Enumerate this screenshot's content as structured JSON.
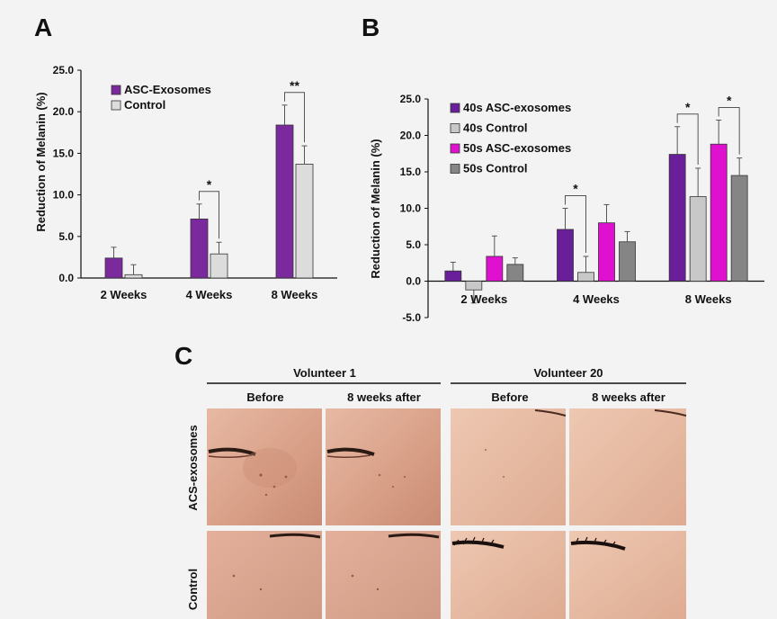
{
  "panels": {
    "a": "A",
    "b": "B",
    "c": "C"
  },
  "chart_data": [
    {
      "type": "bar",
      "panel": "A",
      "ylabel": "Reduction of Melanin (%)",
      "ylim": [
        0,
        25
      ],
      "yticks": [
        "0.0",
        "5.0",
        "10.0",
        "15.0",
        "20.0",
        "25.0"
      ],
      "categories": [
        "2 Weeks",
        "4 Weeks",
        "8 Weeks"
      ],
      "series": [
        {
          "name": "ASC-Exosomes",
          "color": "#7b2a9e",
          "values": [
            2.4,
            7.1,
            18.4
          ],
          "errors": [
            1.3,
            1.8,
            2.4
          ]
        },
        {
          "name": "Control",
          "color": "#dcdcdc",
          "values": [
            0.4,
            2.9,
            13.7
          ],
          "errors": [
            1.2,
            1.4,
            2.2
          ]
        }
      ],
      "significance": [
        {
          "category": 1,
          "label": "*"
        },
        {
          "category": 2,
          "label": "**"
        }
      ],
      "legend": "top-left"
    },
    {
      "type": "bar",
      "panel": "B",
      "ylabel": "Reduction of Melanin (%)",
      "ylim": [
        -5,
        25
      ],
      "yticks": [
        "-5.0",
        "0.0",
        "5.0",
        "10.0",
        "15.0",
        "20.0",
        "25.0"
      ],
      "categories": [
        "2 Weeks",
        "4 Weeks",
        "8 Weeks"
      ],
      "series": [
        {
          "name": "40s ASC-exosomes",
          "color": "#6a1f9a",
          "values": [
            1.4,
            7.1,
            17.4
          ],
          "errors": [
            1.2,
            2.9,
            3.8
          ]
        },
        {
          "name": "40s Control",
          "color": "#c8c8c8",
          "values": [
            -1.2,
            1.2,
            11.6
          ],
          "errors": [
            1.8,
            2.2,
            3.9
          ]
        },
        {
          "name": "50s ASC-exosomes",
          "color": "#e010d0",
          "values": [
            3.4,
            8.0,
            18.8
          ],
          "errors": [
            2.8,
            2.5,
            3.3
          ]
        },
        {
          "name": "50s Control",
          "color": "#858585",
          "values": [
            2.3,
            5.4,
            14.5
          ],
          "errors": [
            0.9,
            1.4,
            2.4
          ]
        }
      ],
      "significance": [
        {
          "category": 1,
          "from": 0,
          "to": 1,
          "label": "*"
        },
        {
          "category": 2,
          "from": 0,
          "to": 1,
          "label": "*"
        },
        {
          "category": 2,
          "from": 2,
          "to": 3,
          "label": "*"
        }
      ],
      "legend": "top-left"
    }
  ],
  "photos": {
    "volunteers": [
      "Volunteer 1",
      "Volunteer 20"
    ],
    "columns": [
      "Before",
      "8 weeks after",
      "Before",
      "8 weeks after"
    ],
    "rows": [
      "ACS-exosomes",
      "Control"
    ]
  }
}
